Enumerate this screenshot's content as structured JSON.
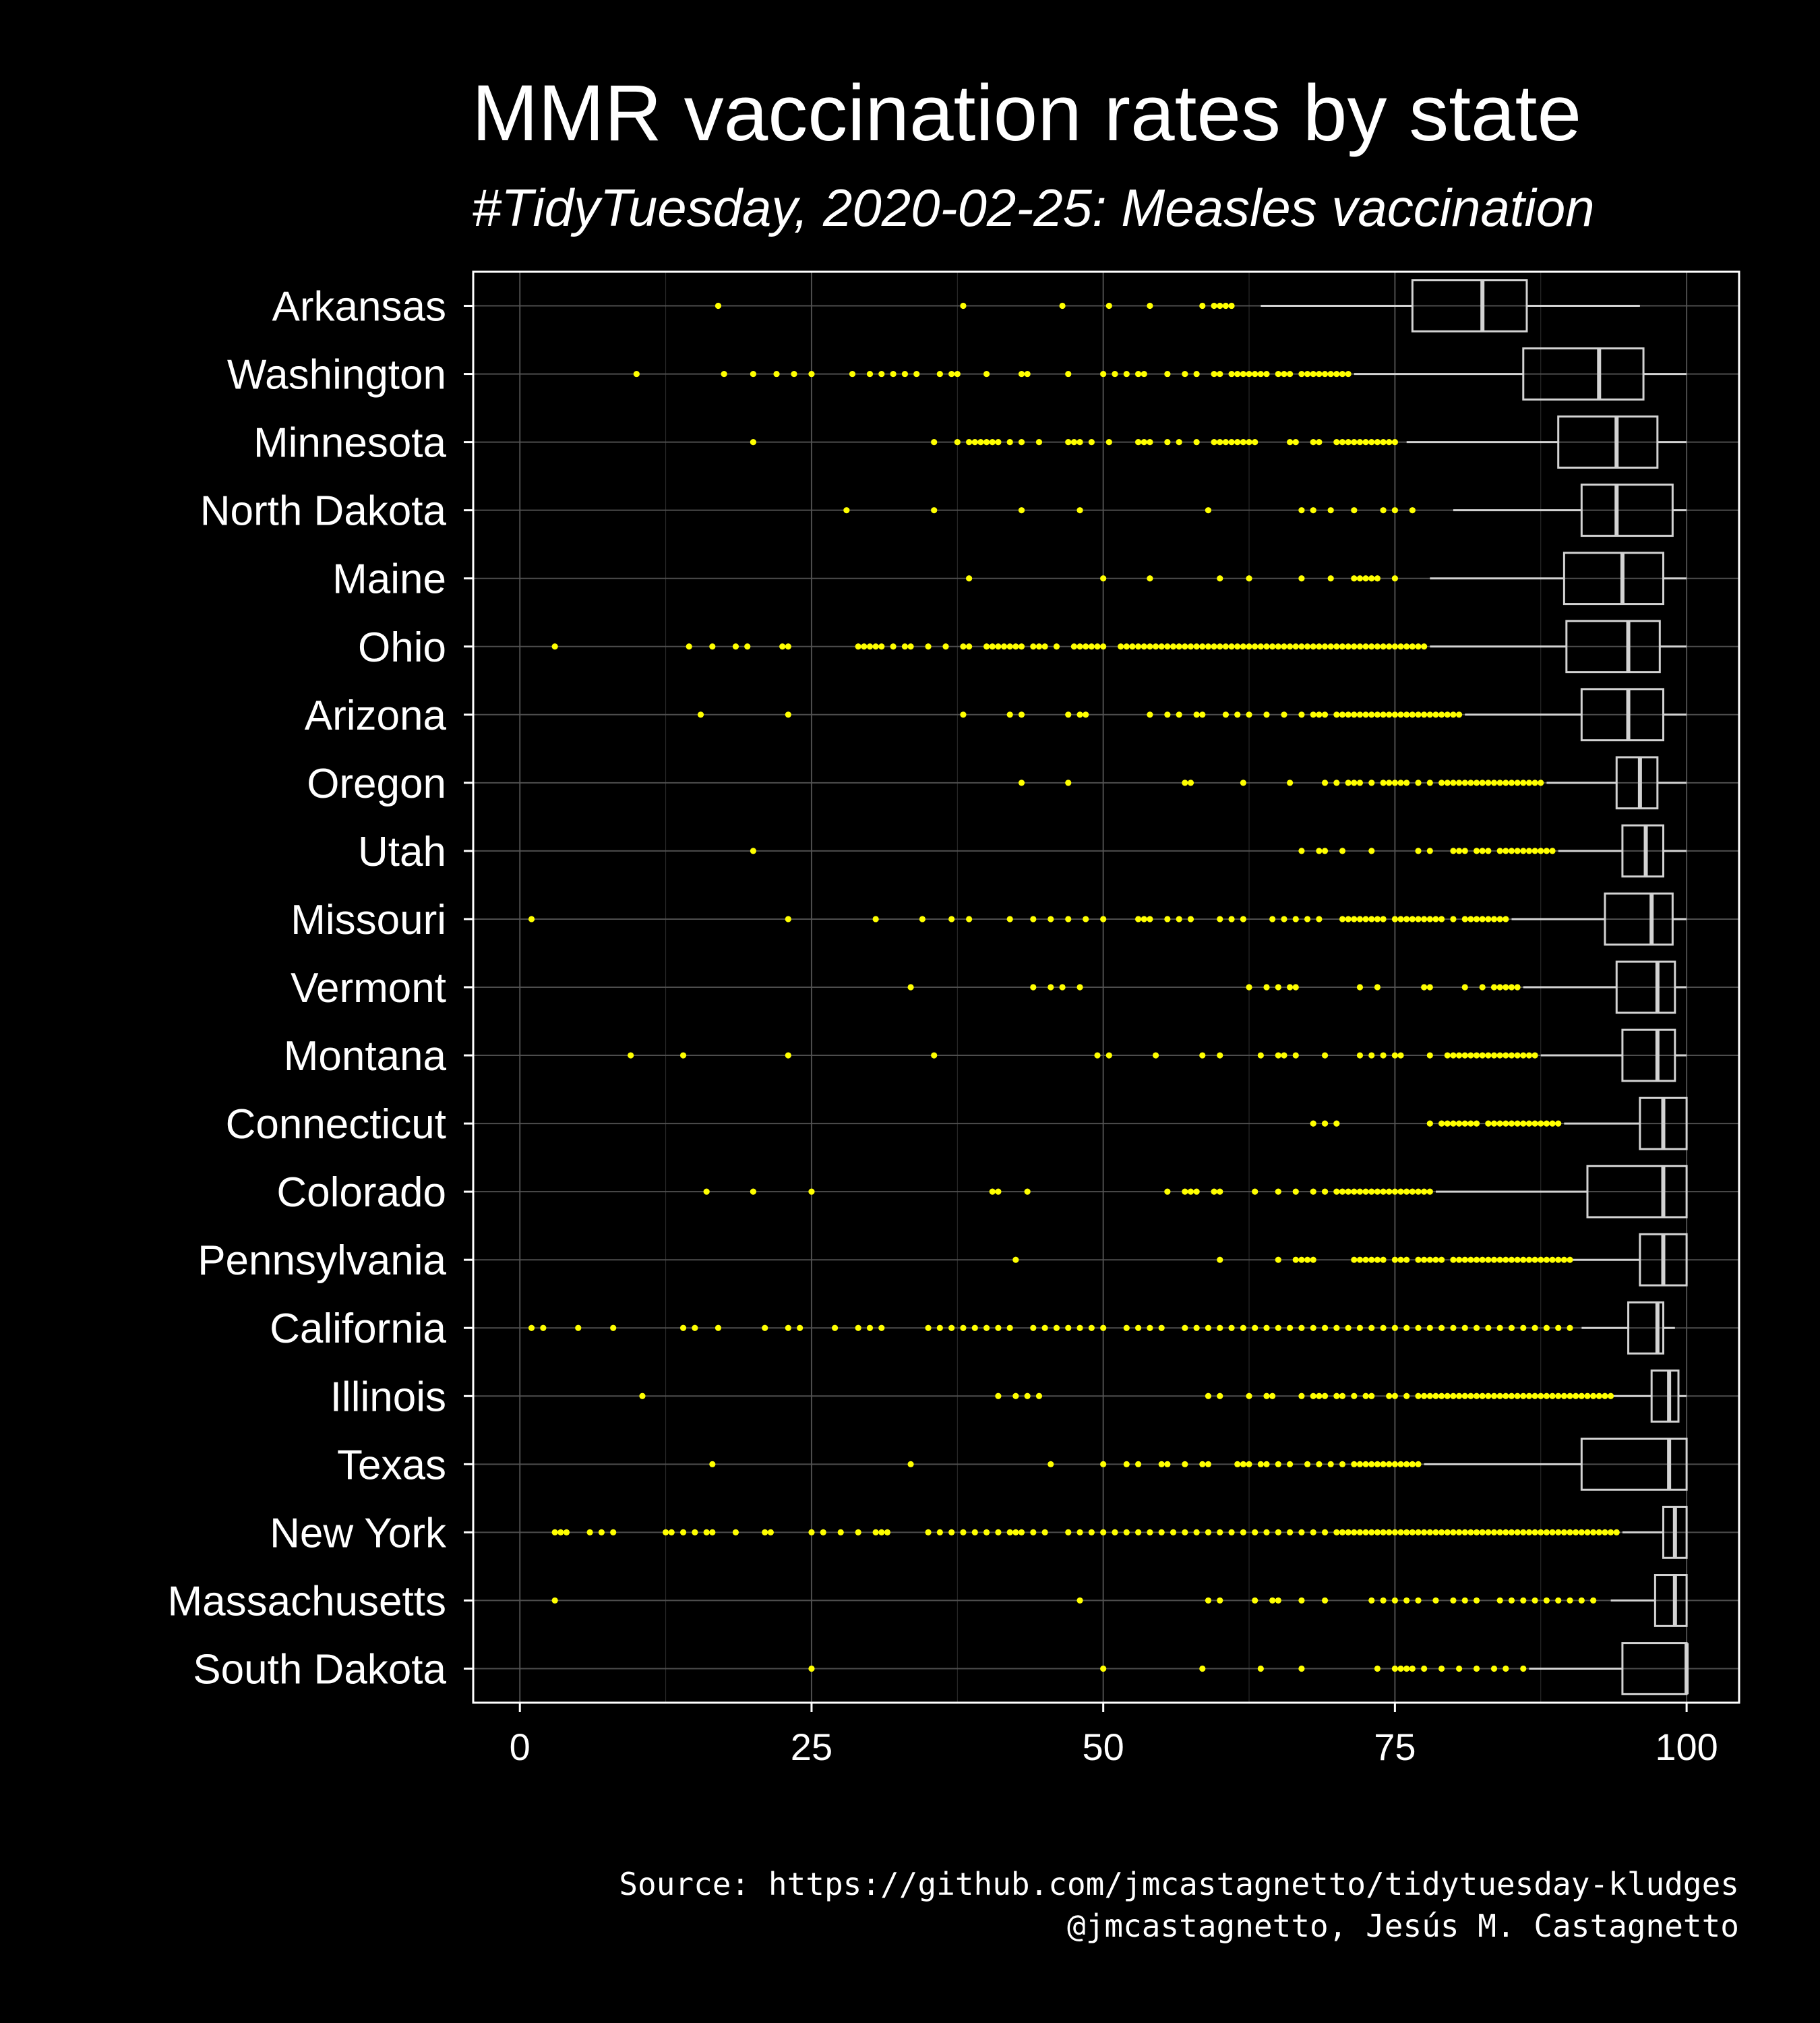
{
  "colors": {
    "background": "#000000",
    "text": "#ffffff",
    "outlier": "#ffff00",
    "box": "#d3d3d3",
    "grid": "#555555"
  },
  "chart_data": {
    "type": "boxplot",
    "orientation": "horizontal",
    "title": "MMR vaccination rates by state",
    "subtitle": "#TidyTuesday, 2020-02-25: Measles vaccination",
    "caption_line1": "Source: https://github.com/jmcastagnetto/tidytuesday-kludges",
    "caption_line2": "@jmcastagnetto, Jesús M. Castagnetto",
    "xlabel": "",
    "ylabel": "",
    "xlim": [
      -4,
      104.5
    ],
    "xticks": [
      0,
      25,
      50,
      75,
      100
    ],
    "grid": true,
    "series": [
      {
        "label": "Arkansas",
        "min": 63.5,
        "q1": 76.5,
        "median": 82.5,
        "q3": 86.3,
        "max": 96.0,
        "outliers": [
          17,
          38,
          46.5,
          50.5,
          54,
          58.5,
          59.5,
          60,
          60.5,
          61
        ]
      },
      {
        "label": "Washington",
        "min": 71.5,
        "q1": 86.0,
        "median": 92.5,
        "q3": 96.3,
        "max": 100,
        "outliers": [
          10,
          17.5,
          20,
          22,
          23.5,
          25,
          28.5,
          30,
          31,
          32,
          33,
          34,
          36,
          37,
          37.5,
          40,
          43,
          43.5,
          47,
          50,
          51,
          52,
          53,
          53.5,
          55.5,
          57,
          58,
          59.5,
          60,
          61,
          61.5,
          62,
          62.5,
          63,
          63.5,
          64,
          65,
          65.5,
          66,
          67,
          67.5,
          68,
          68.5,
          69,
          69.5,
          70,
          70.5,
          71
        ]
      },
      {
        "label": "Minnesota",
        "min": 76.0,
        "q1": 89.0,
        "median": 94.0,
        "q3": 97.5,
        "max": 100,
        "outliers": [
          20,
          35.5,
          37.5,
          38.5,
          39,
          39.5,
          40,
          40.5,
          41,
          42,
          43,
          44.5,
          47,
          47.5,
          48,
          49,
          50.5,
          53,
          53.5,
          54,
          55.5,
          56.5,
          58,
          59.5,
          60,
          60.5,
          61,
          61.5,
          62,
          62.5,
          63,
          66,
          66.5,
          68,
          68.5,
          70,
          70.5,
          71,
          71.5,
          72,
          72.5,
          73,
          73.5,
          74,
          74.5,
          75
        ]
      },
      {
        "label": "North Dakota",
        "min": 80.0,
        "q1": 91.0,
        "median": 94.0,
        "q3": 98.8,
        "max": 100,
        "outliers": [
          28,
          35.5,
          43,
          48,
          59,
          67,
          68,
          69.5,
          71.5,
          74,
          75,
          76.5
        ]
      },
      {
        "label": "Maine",
        "min": 78.0,
        "q1": 89.5,
        "median": 94.5,
        "q3": 98.0,
        "max": 100,
        "outliers": [
          38.5,
          50,
          54,
          60,
          62.5,
          67,
          69.5,
          71.5,
          72,
          72.5,
          73,
          73.5,
          75
        ]
      },
      {
        "label": "Ohio",
        "min": 78.0,
        "q1": 89.7,
        "median": 95.0,
        "q3": 97.7,
        "max": 100,
        "outliers": [
          3,
          14.5,
          16.5,
          18.5,
          19.5,
          22.5,
          23,
          29,
          29.5,
          30,
          30.5,
          31,
          32,
          33,
          33.5,
          35,
          36.5,
          38,
          38.5,
          40,
          40.5,
          41,
          41.5,
          42,
          42.5,
          43,
          44,
          44.5,
          45,
          46,
          47.5,
          48,
          48.5,
          49,
          49.5,
          50,
          51.5,
          52,
          52.5,
          53,
          53.5,
          54,
          54.5,
          55,
          55.5,
          56,
          56.5,
          57,
          57.5,
          58,
          58.5,
          59,
          59.5,
          60,
          60.5,
          61,
          61.5,
          62,
          62.5,
          63,
          63.5,
          64,
          64.5,
          65,
          65.5,
          66,
          66.5,
          67,
          67.5,
          68,
          68.5,
          69,
          69.5,
          70,
          70.5,
          71,
          71.5,
          72,
          72.5,
          73,
          73.5,
          74,
          74.5,
          75,
          75.5,
          76,
          76.5,
          77,
          77.5
        ]
      },
      {
        "label": "Arizona",
        "min": 81.0,
        "q1": 91.0,
        "median": 95.0,
        "q3": 98.0,
        "max": 100,
        "outliers": [
          15.5,
          23,
          38,
          42,
          43,
          47,
          48,
          48.5,
          54,
          55.5,
          56.5,
          58,
          58.5,
          60.5,
          61.5,
          62.5,
          64,
          65.5,
          67,
          68,
          68.5,
          69,
          70,
          70.5,
          71,
          71.5,
          72,
          72.5,
          73,
          73.5,
          74,
          74.5,
          75,
          75.5,
          76,
          76.5,
          77,
          77.5,
          78,
          78.5,
          79,
          79.5,
          80,
          80.5
        ]
      },
      {
        "label": "Oregon",
        "min": 88.0,
        "q1": 94.0,
        "median": 96.0,
        "q3": 97.5,
        "max": 100,
        "outliers": [
          43,
          47,
          57,
          57.5,
          62,
          66,
          69,
          70,
          71,
          71.5,
          72,
          73,
          74,
          74.5,
          75,
          75.5,
          76,
          77,
          78,
          79,
          79.5,
          80,
          80.5,
          81,
          81.5,
          82,
          82.5,
          83,
          83.5,
          84,
          84.5,
          85,
          85.5,
          86,
          86.5,
          87,
          87.5
        ]
      },
      {
        "label": "Utah",
        "min": 89.0,
        "q1": 94.5,
        "median": 96.5,
        "q3": 98.0,
        "max": 100,
        "outliers": [
          20,
          67,
          68.5,
          69,
          70.5,
          73,
          77,
          78,
          80,
          80.5,
          81,
          82,
          82.5,
          83,
          84,
          84.5,
          85,
          85.5,
          86,
          86.5,
          87,
          87.5,
          88,
          88.5
        ]
      },
      {
        "label": "Missouri",
        "min": 85.0,
        "q1": 93.0,
        "median": 97.0,
        "q3": 98.8,
        "max": 100,
        "outliers": [
          1,
          23,
          30.5,
          34.5,
          37,
          38.5,
          42,
          44,
          45.5,
          47,
          48.5,
          50,
          53,
          53.5,
          54,
          55.5,
          56.5,
          57.5,
          60,
          61,
          62,
          64.5,
          65.5,
          66.5,
          67.5,
          68.5,
          70.5,
          71,
          71.5,
          72,
          72.5,
          73,
          73.5,
          74,
          75,
          75.5,
          76,
          76.5,
          77,
          77.5,
          78,
          78.5,
          79,
          80,
          81,
          81.5,
          82,
          82.5,
          83,
          83.5,
          84,
          84.5
        ]
      },
      {
        "label": "Vermont",
        "min": 86.0,
        "q1": 94.0,
        "median": 97.5,
        "q3": 99.0,
        "max": 100,
        "outliers": [
          33.5,
          44,
          45.5,
          46.5,
          48,
          62.5,
          64,
          65,
          66,
          66.5,
          72,
          73.5,
          77.5,
          78,
          81,
          82.5,
          83.5,
          84,
          84.5,
          85,
          85.5
        ]
      },
      {
        "label": "Montana",
        "min": 87.5,
        "q1": 94.5,
        "median": 97.5,
        "q3": 99.0,
        "max": 100,
        "outliers": [
          9.5,
          14,
          23,
          35.5,
          49.5,
          50.5,
          54.5,
          58.5,
          60,
          63.5,
          65,
          65.5,
          66.5,
          69,
          72,
          73,
          74,
          75,
          75.5,
          78,
          79.5,
          80,
          80.5,
          81,
          81.5,
          82,
          82.5,
          83,
          83.5,
          84,
          84.5,
          85,
          85.5,
          86,
          86.5,
          87
        ]
      },
      {
        "label": "Connecticut",
        "min": 89.5,
        "q1": 96.0,
        "median": 98.0,
        "q3": 100,
        "max": 100,
        "outliers": [
          68,
          69,
          70,
          78,
          79,
          79.5,
          80,
          80.5,
          81,
          81.5,
          82,
          83,
          83.5,
          84,
          84.5,
          85,
          85.5,
          86,
          86.5,
          87,
          87.5,
          88,
          88.5,
          89
        ]
      },
      {
        "label": "Colorado",
        "min": 78.5,
        "q1": 91.5,
        "median": 98.0,
        "q3": 100,
        "max": 100,
        "outliers": [
          16,
          20,
          25,
          40.5,
          41,
          43.5,
          55.5,
          57,
          57.5,
          58,
          59.5,
          60,
          63,
          65,
          66.5,
          68,
          69,
          70,
          70.5,
          71,
          71.5,
          72,
          72.5,
          73,
          73.5,
          74,
          74.5,
          75,
          75.5,
          76,
          76.5,
          77,
          77.5,
          78
        ]
      },
      {
        "label": "Pennsylvania",
        "min": 90.0,
        "q1": 96.0,
        "median": 98.0,
        "q3": 100,
        "max": 100,
        "outliers": [
          42.5,
          60,
          65,
          66.5,
          67,
          67.5,
          68,
          71.5,
          72,
          72.5,
          73,
          73.5,
          74,
          75,
          75.5,
          76,
          77,
          77.5,
          78,
          78.5,
          79,
          80,
          80.5,
          81,
          81.5,
          82,
          82.5,
          83,
          83.5,
          84,
          84.5,
          85,
          85.5,
          86,
          86.5,
          87,
          87.5,
          88,
          88.5,
          89,
          89.5,
          90
        ]
      },
      {
        "label": "California",
        "min": 91.0,
        "q1": 95.0,
        "median": 97.5,
        "q3": 98.0,
        "max": 99.0,
        "outliers": [
          1,
          2,
          5,
          8,
          14,
          15,
          17,
          21,
          23,
          24,
          27,
          29,
          30,
          31,
          35,
          36,
          37,
          38,
          39,
          40,
          41,
          42,
          44,
          45,
          46,
          47,
          48,
          49,
          50,
          52,
          53,
          54,
          55,
          57,
          58,
          59,
          60,
          61,
          62,
          63,
          64,
          65,
          66,
          67,
          68,
          69,
          70,
          71,
          72,
          73,
          74,
          75,
          76,
          77,
          78,
          79,
          80,
          81,
          82,
          83,
          84,
          85,
          86,
          87,
          88,
          89,
          90
        ]
      },
      {
        "label": "Illinois",
        "min": 93.5,
        "q1": 97.0,
        "median": 98.5,
        "q3": 99.3,
        "max": 100,
        "outliers": [
          10.5,
          41,
          42.5,
          43.5,
          44.5,
          59,
          60,
          62.5,
          64,
          64.5,
          67,
          68,
          68.5,
          69,
          70,
          70.5,
          71.5,
          72.5,
          73,
          74.5,
          75,
          76,
          77,
          77.5,
          78,
          78.5,
          79,
          79.5,
          80,
          80.5,
          81,
          81.5,
          82,
          82.5,
          83,
          83.5,
          84,
          84.5,
          85,
          85.5,
          86,
          86.5,
          87,
          87.5,
          88,
          88.5,
          89,
          89.5,
          90,
          90.5,
          91,
          91.5,
          92,
          92.5,
          93,
          93.5
        ]
      },
      {
        "label": "Texas",
        "min": 77.5,
        "q1": 91.0,
        "median": 98.5,
        "q3": 100,
        "max": 100,
        "outliers": [
          16.5,
          33.5,
          45.5,
          50,
          52,
          53,
          55,
          55.5,
          57,
          58.5,
          59,
          61.5,
          62,
          62.5,
          63.5,
          64,
          65,
          66,
          67.5,
          68.5,
          69.5,
          70.5,
          71.5,
          72,
          72.5,
          73,
          73.5,
          74,
          74.5,
          75,
          75.5,
          76,
          76.5,
          77
        ]
      },
      {
        "label": "New York",
        "min": 94.5,
        "q1": 98.0,
        "median": 99.0,
        "q3": 100,
        "max": 100,
        "outliers": [
          3,
          3.5,
          4,
          6,
          7,
          8,
          12.5,
          13,
          14,
          15,
          16,
          16.5,
          18.5,
          21,
          21.5,
          25,
          26,
          27.5,
          29,
          30.5,
          31,
          31.5,
          35,
          36,
          37,
          38,
          39,
          40,
          41,
          42,
          42.5,
          43,
          44,
          45,
          47,
          48,
          49,
          50,
          51,
          52,
          53,
          54,
          55,
          56,
          57,
          58,
          59,
          60,
          61,
          62,
          63,
          64,
          65,
          66,
          67,
          68,
          69,
          70,
          70.5,
          71,
          71.5,
          72,
          72.5,
          73,
          73.5,
          74,
          74.5,
          75,
          75.5,
          76,
          76.5,
          77,
          77.5,
          78,
          78.5,
          79,
          79.5,
          80,
          80.5,
          81,
          81.5,
          82,
          82.5,
          83,
          83.5,
          84,
          84.5,
          85,
          85.5,
          86,
          86.5,
          87,
          87.5,
          88,
          88.5,
          89,
          89.5,
          90,
          90.5,
          91,
          91.5,
          92,
          92.5,
          93,
          93.5,
          94
        ]
      },
      {
        "label": "Massachusetts",
        "min": 93.5,
        "q1": 97.3,
        "median": 99.0,
        "q3": 100,
        "max": 100,
        "outliers": [
          3,
          48,
          59,
          60,
          63,
          64.5,
          65,
          67,
          69,
          73,
          74,
          75,
          76,
          77,
          78.5,
          80,
          81,
          82,
          84,
          85,
          86,
          87,
          88,
          89,
          90,
          91,
          92
        ]
      },
      {
        "label": "South Dakota",
        "min": 86.5,
        "q1": 94.5,
        "median": 100,
        "q3": 100,
        "max": 100,
        "outliers": [
          25,
          50,
          58.5,
          63.5,
          67,
          73.5,
          75,
          75.5,
          76,
          76.5,
          77.5,
          79,
          80.5,
          82,
          83.5,
          84.5,
          86
        ]
      }
    ]
  }
}
